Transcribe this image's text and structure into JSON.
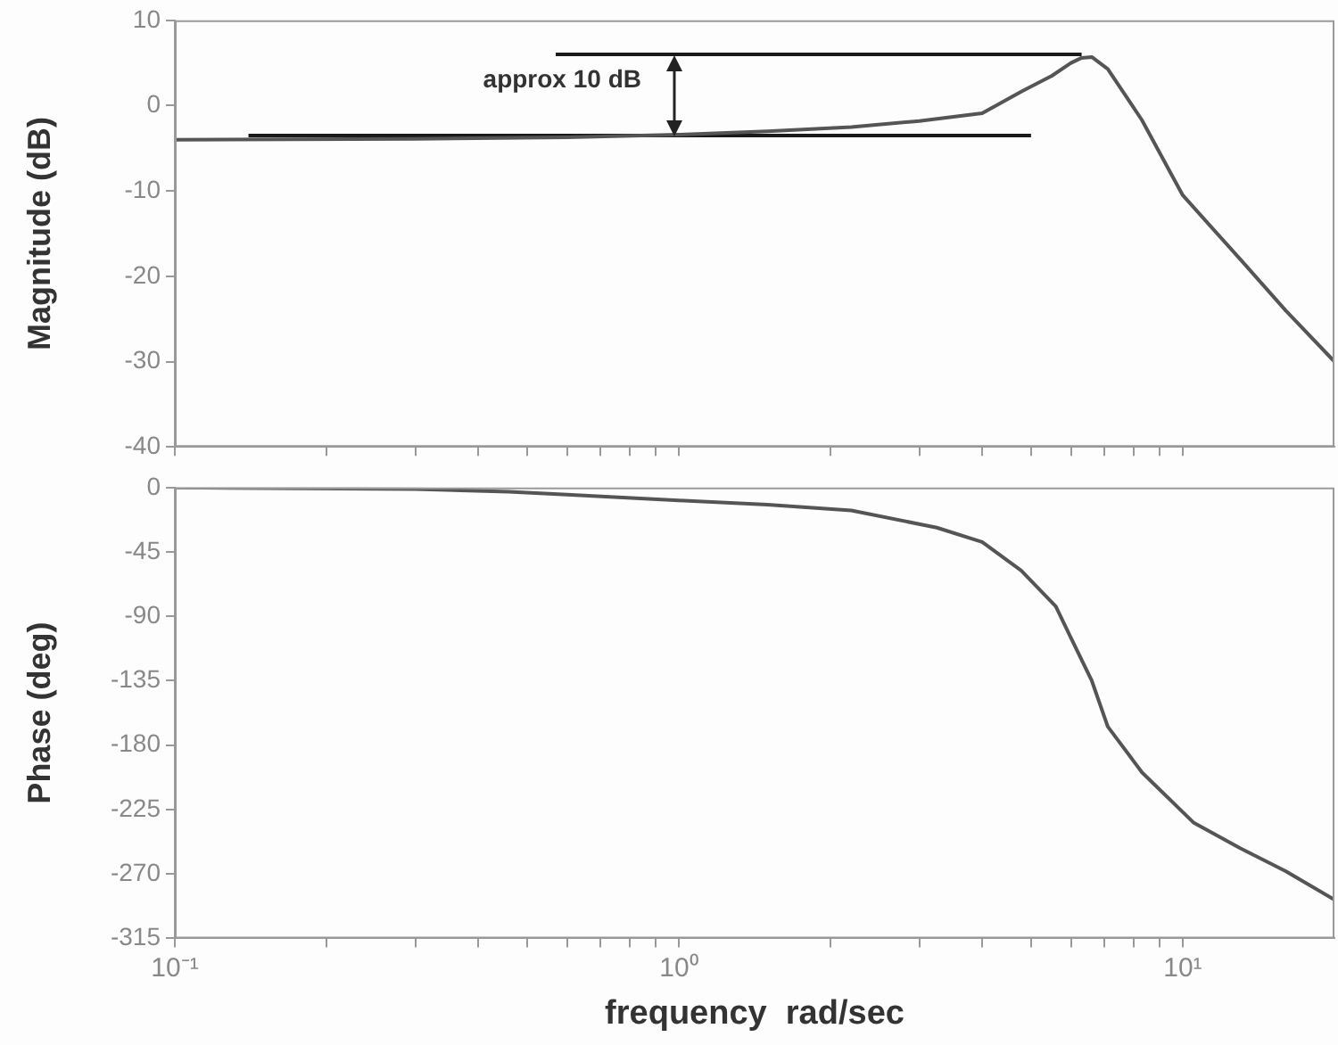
{
  "chart_data": [
    {
      "type": "line",
      "ylabel": "Magnitude (dB)",
      "xlim": [
        0.1,
        20
      ],
      "ylim": [
        -40,
        10
      ],
      "yticks": [
        10,
        0,
        -10,
        -20,
        -30,
        -40
      ],
      "log": "x",
      "grid": false,
      "legend": false,
      "marker": "none",
      "tick_labels": "y",
      "xticks": [
        {
          "value": 0.1,
          "label": null
        },
        {
          "value": 0.2,
          "label": null
        },
        {
          "value": 0.3,
          "label": null
        },
        {
          "value": 0.4,
          "label": null
        },
        {
          "value": 0.5,
          "label": null
        },
        {
          "value": 0.6,
          "label": null
        },
        {
          "value": 0.7,
          "label": null
        },
        {
          "value": 0.8,
          "label": null
        },
        {
          "value": 0.9,
          "label": null
        },
        {
          "value": 1,
          "label": null
        },
        {
          "value": 2,
          "label": null
        },
        {
          "value": 3,
          "label": null
        },
        {
          "value": 4,
          "label": null
        },
        {
          "value": 5,
          "label": null
        },
        {
          "value": 6,
          "label": null
        },
        {
          "value": 7,
          "label": null
        },
        {
          "value": 8,
          "label": null
        },
        {
          "value": 9,
          "label": null
        },
        {
          "value": 10,
          "label": null
        }
      ],
      "series": [
        {
          "color": "#555555",
          "x": [
            0.1,
            0.3,
            0.6,
            1,
            1.5,
            2.2,
            3,
            4,
            4.8,
            5.5,
            6,
            6.3,
            6.6,
            7.1,
            8.3,
            10,
            13,
            16,
            20
          ],
          "values": [
            -4,
            -3.9,
            -3.7,
            -3.4,
            -3,
            -2.5,
            -1.8,
            -0.9,
            1.7,
            3.5,
            5,
            5.6,
            5.7,
            4.3,
            -1.7,
            -10.5,
            -18,
            -24,
            -30
          ]
        },
        {
          "color": "#1a1a1a",
          "x": [
            0.57,
            6.3
          ],
          "values": [
            6,
            6
          ]
        },
        {
          "color": "#1a1a1a",
          "x": [
            0.14,
            5
          ],
          "values": [
            -3.5,
            -3.5
          ]
        }
      ],
      "annotations": [
        "approx 10 dB"
      ]
    },
    {
      "type": "line",
      "ylabel": "Phase (deg)",
      "xlabel": "frequency  rad/sec",
      "xlim": [
        0.1,
        20
      ],
      "ylim": [
        -315,
        0
      ],
      "yticks": [
        0,
        -45,
        -90,
        -135,
        -180,
        -225,
        -270,
        -315
      ],
      "log": "x",
      "grid": false,
      "legend": false,
      "marker": "none",
      "xticks": [
        {
          "value": 0.1,
          "label": "10⁻¹"
        },
        {
          "value": 0.2,
          "label": null
        },
        {
          "value": 0.3,
          "label": null
        },
        {
          "value": 0.4,
          "label": null
        },
        {
          "value": 0.5,
          "label": null
        },
        {
          "value": 0.6,
          "label": null
        },
        {
          "value": 0.7,
          "label": null
        },
        {
          "value": 0.8,
          "label": null
        },
        {
          "value": 0.9,
          "label": null
        },
        {
          "value": 1,
          "label": "10⁰"
        },
        {
          "value": 2,
          "label": null
        },
        {
          "value": 3,
          "label": null
        },
        {
          "value": 4,
          "label": null
        },
        {
          "value": 5,
          "label": null
        },
        {
          "value": 6,
          "label": null
        },
        {
          "value": 7,
          "label": null
        },
        {
          "value": 8,
          "label": null
        },
        {
          "value": 9,
          "label": null
        },
        {
          "value": 10,
          "label": "10¹"
        }
      ],
      "series": [
        {
          "color": "#555555",
          "x": [
            0.1,
            0.3,
            0.46,
            0.6,
            1,
            1.5,
            2.2,
            3.25,
            4,
            4.78,
            5.6,
            6,
            6.6,
            7.1,
            8.3,
            10.5,
            13,
            16,
            20
          ],
          "values": [
            0,
            -1,
            -3,
            -5,
            -9,
            -12,
            -16,
            -28,
            -38,
            -58,
            -83,
            -105,
            -135,
            -167,
            -199,
            -234,
            -252,
            -268,
            -288
          ]
        }
      ]
    }
  ]
}
